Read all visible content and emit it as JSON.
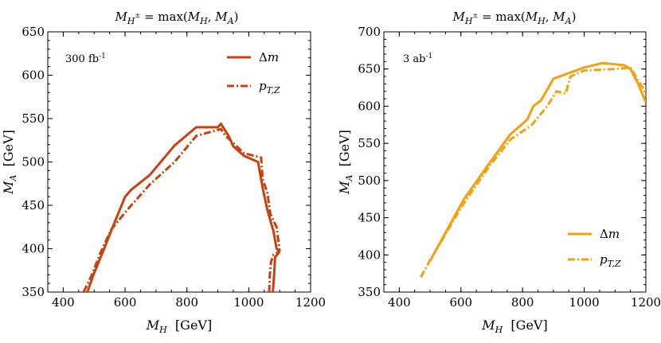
{
  "chart_data": [
    {
      "type": "line",
      "title": "M_{H±} = max(M_H, M_A)",
      "xlabel": "M_H  [GeV]",
      "ylabel": "M_A  [GeV]",
      "xlim": [
        350,
        1200
      ],
      "ylim": [
        350,
        650
      ],
      "xticks": [
        400,
        600,
        800,
        1000,
        1200
      ],
      "yticks": [
        350,
        400,
        450,
        500,
        550,
        600,
        650
      ],
      "annotation": "300 fb",
      "annotation_sup": "-1",
      "color": "#c9410f",
      "legend": [
        {
          "label": "Δm",
          "style": "solid"
        },
        {
          "label": "p_{T,Z}",
          "style": "dashed"
        }
      ],
      "series": [
        {
          "name": "Δm",
          "style": "solid",
          "segments": [
            [
              [
                478,
                350
              ],
              [
                500,
                372
              ],
              [
                530,
                398
              ],
              [
                560,
                425
              ],
              [
                600,
                460
              ],
              [
                620,
                468
              ],
              [
                680,
                485
              ],
              [
                760,
                519
              ],
              [
                830,
                540
              ],
              [
                900,
                540
              ],
              [
                910,
                544
              ],
              [
                935,
                530
              ],
              [
                950,
                518
              ],
              [
                985,
                507
              ],
              [
                1030,
                500
              ],
              [
                1045,
                470
              ],
              [
                1060,
                445
              ],
              [
                1080,
                420
              ],
              [
                1090,
                400
              ],
              [
                1100,
                397
              ]
            ],
            [
              [
                1078,
                350
              ],
              [
                1082,
                370
              ],
              [
                1085,
                390
              ],
              [
                1100,
                397
              ]
            ]
          ]
        },
        {
          "name": "p_{T,Z}",
          "style": "dashed",
          "segments": [
            [
              [
                466,
                350
              ],
              [
                490,
                368
              ],
              [
                520,
                395
              ],
              [
                555,
                422
              ],
              [
                610,
                446
              ],
              [
                680,
                474
              ],
              [
                760,
                500
              ],
              [
                830,
                530
              ],
              [
                910,
                538
              ],
              [
                925,
                530
              ],
              [
                950,
                522
              ],
              [
                985,
                510
              ],
              [
                1040,
                505
              ],
              [
                1045,
                480
              ],
              [
                1060,
                465
              ],
              [
                1070,
                440
              ],
              [
                1090,
                425
              ],
              [
                1100,
                397
              ]
            ],
            [
              [
                1066,
                350
              ],
              [
                1068,
                370
              ],
              [
                1072,
                385
              ],
              [
                1080,
                393
              ],
              [
                1100,
                397
              ]
            ]
          ]
        }
      ]
    },
    {
      "type": "line",
      "title": "M_{H±} = max(M_H, M_A)",
      "xlabel": "M_H  [GeV]",
      "ylabel": "M_A  [GeV]",
      "xlim": [
        350,
        1200
      ],
      "ylim": [
        350,
        700
      ],
      "xticks": [
        400,
        600,
        800,
        1000,
        1200
      ],
      "yticks": [
        350,
        400,
        450,
        500,
        550,
        600,
        650,
        700
      ],
      "annotation": "3 ab",
      "annotation_sup": "-1",
      "color": "#f5a00f",
      "legend": [
        {
          "label": "Δm",
          "style": "solid"
        },
        {
          "label": "p_{T,Z}",
          "style": "dashed"
        }
      ],
      "series": [
        {
          "name": "Δm",
          "style": "solid",
          "segments": [
            [
              [
                500,
                392
              ],
              [
                550,
                430
              ],
              [
                610,
                475
              ],
              [
                690,
                522
              ],
              [
                760,
                562
              ],
              [
                815,
                582
              ],
              [
                835,
                600
              ],
              [
                860,
                608
              ],
              [
                900,
                637
              ],
              [
                1000,
                652
              ],
              [
                1060,
                658
              ],
              [
                1130,
                655
              ],
              [
                1150,
                650
              ],
              [
                1175,
                630
              ],
              [
                1200,
                605
              ]
            ]
          ]
        },
        {
          "name": "p_{T,Z}",
          "style": "dashed",
          "segments": [
            [
              [
                470,
                370
              ],
              [
                500,
                393
              ],
              [
                610,
                470
              ],
              [
                690,
                518
              ],
              [
                760,
                555
              ],
              [
                830,
                575
              ],
              [
                880,
                600
              ],
              [
                910,
                620
              ],
              [
                940,
                617
              ],
              [
                955,
                640
              ],
              [
                1000,
                648
              ],
              [
                1050,
                649
              ],
              [
                1100,
                650
              ],
              [
                1150,
                652
              ],
              [
                1200,
                618
              ]
            ]
          ]
        }
      ]
    }
  ]
}
